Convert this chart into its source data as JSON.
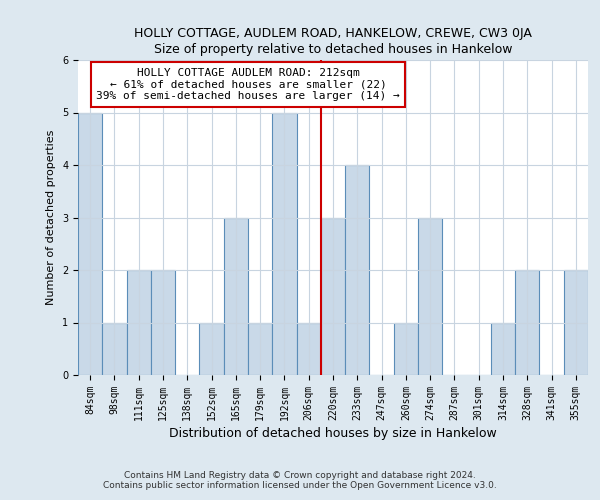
{
  "title": "HOLLY COTTAGE, AUDLEM ROAD, HANKELOW, CREWE, CW3 0JA",
  "subtitle": "Size of property relative to detached houses in Hankelow",
  "xlabel": "Distribution of detached houses by size in Hankelow",
  "ylabel": "Number of detached properties",
  "categories": [
    "84sqm",
    "98sqm",
    "111sqm",
    "125sqm",
    "138sqm",
    "152sqm",
    "165sqm",
    "179sqm",
    "192sqm",
    "206sqm",
    "220sqm",
    "233sqm",
    "247sqm",
    "260sqm",
    "274sqm",
    "287sqm",
    "301sqm",
    "314sqm",
    "328sqm",
    "341sqm",
    "355sqm"
  ],
  "values": [
    5,
    1,
    2,
    2,
    0,
    1,
    3,
    1,
    5,
    1,
    3,
    4,
    0,
    1,
    3,
    0,
    0,
    1,
    2,
    0,
    2
  ],
  "bar_color": "#c9d9e8",
  "bar_edge_color": "#5b8db8",
  "highlight_index": 9,
  "highlight_line_color": "#cc0000",
  "annotation_text": "HOLLY COTTAGE AUDLEM ROAD: 212sqm\n← 61% of detached houses are smaller (22)\n39% of semi-detached houses are larger (14) →",
  "annotation_box_color": "#ffffff",
  "annotation_box_edge_color": "#cc0000",
  "ylim": [
    0,
    6
  ],
  "yticks": [
    0,
    1,
    2,
    3,
    4,
    5,
    6
  ],
  "footer_line1": "Contains HM Land Registry data © Crown copyright and database right 2024.",
  "footer_line2": "Contains public sector information licensed under the Open Government Licence v3.0.",
  "background_color": "#dde8f0",
  "plot_background_color": "#ffffff",
  "grid_color": "#c8d4e0",
  "title_fontsize": 9,
  "subtitle_fontsize": 9,
  "xlabel_fontsize": 9,
  "ylabel_fontsize": 8,
  "tick_fontsize": 7,
  "annotation_fontsize": 8,
  "footer_fontsize": 6.5
}
